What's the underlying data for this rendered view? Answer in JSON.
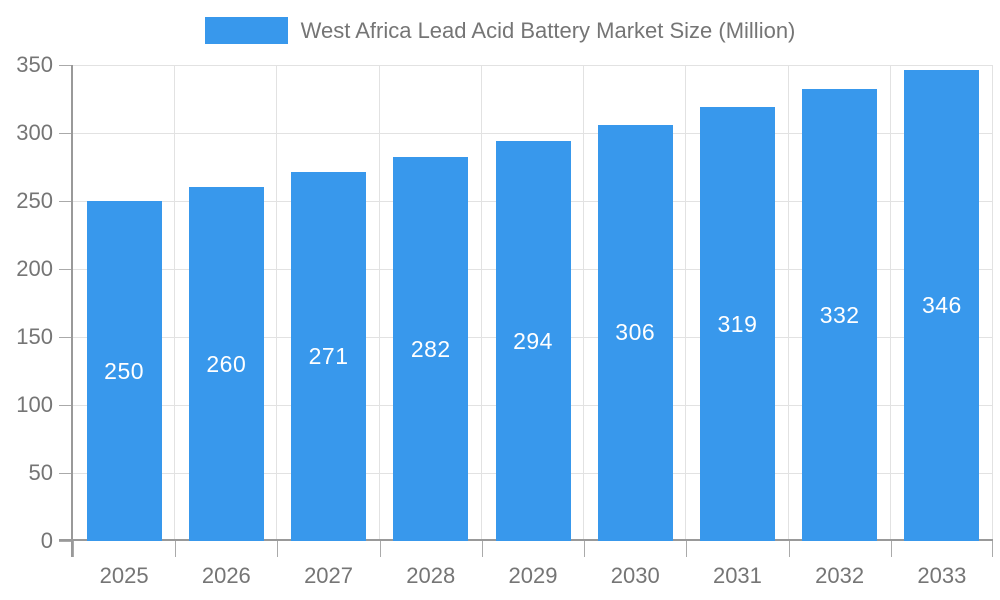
{
  "legend": {
    "label": "West Africa Lead Acid Battery Market Size (Million)"
  },
  "chart_data": {
    "type": "bar",
    "title": "West Africa Lead Acid Battery Market Size (Million)",
    "categories": [
      "2025",
      "2026",
      "2027",
      "2028",
      "2029",
      "2030",
      "2031",
      "2032",
      "2033"
    ],
    "values": [
      250,
      260,
      271,
      282,
      294,
      306,
      319,
      332,
      346
    ],
    "xlabel": "",
    "ylabel": "",
    "ylim": [
      0,
      350
    ],
    "yticks": [
      0,
      50,
      100,
      150,
      200,
      250,
      300,
      350
    ],
    "grid": true,
    "legend_position": "top-center",
    "colors": {
      "bar": "#3898ec",
      "bar_label": "#ffffff",
      "axis_text": "#757575",
      "grid_line": "#e2e2e2",
      "axis_line": "#999999",
      "tick_line": "#aaaaaa",
      "background": "#ffffff"
    }
  }
}
